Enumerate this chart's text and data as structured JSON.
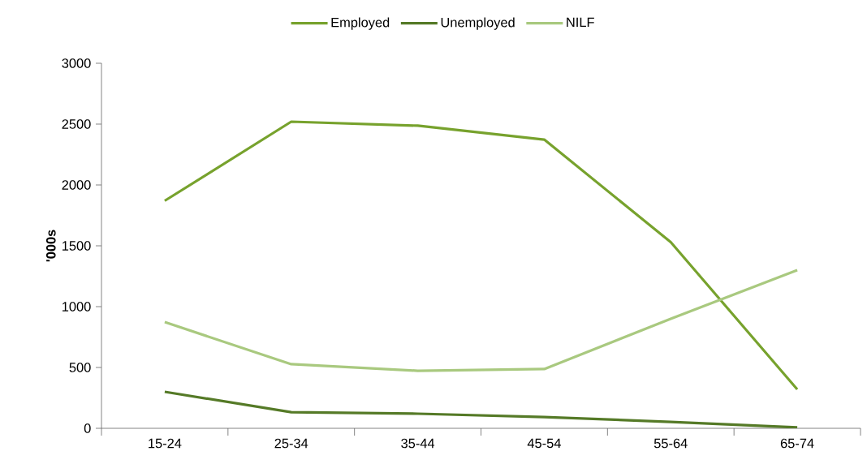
{
  "chart_data": {
    "type": "line",
    "ylabel": "'000s",
    "categories": [
      "15-24",
      "25-34",
      "35-44",
      "45-54",
      "55-64",
      "65-74"
    ],
    "series": [
      {
        "name": "Employed",
        "color": "#77a22d",
        "values": [
          1870,
          2520,
          2487,
          2373,
          1530,
          320
        ]
      },
      {
        "name": "Unemployed",
        "color": "#557a27",
        "values": [
          300,
          133,
          120,
          93,
          53,
          7
        ]
      },
      {
        "name": "NILF",
        "color": "#a9c97f",
        "values": [
          873,
          527,
          473,
          487,
          900,
          1300
        ]
      }
    ],
    "ylim": [
      0,
      3000
    ],
    "yticks": [
      0,
      500,
      1000,
      1500,
      2000,
      2500,
      3000
    ],
    "legend": "top"
  }
}
